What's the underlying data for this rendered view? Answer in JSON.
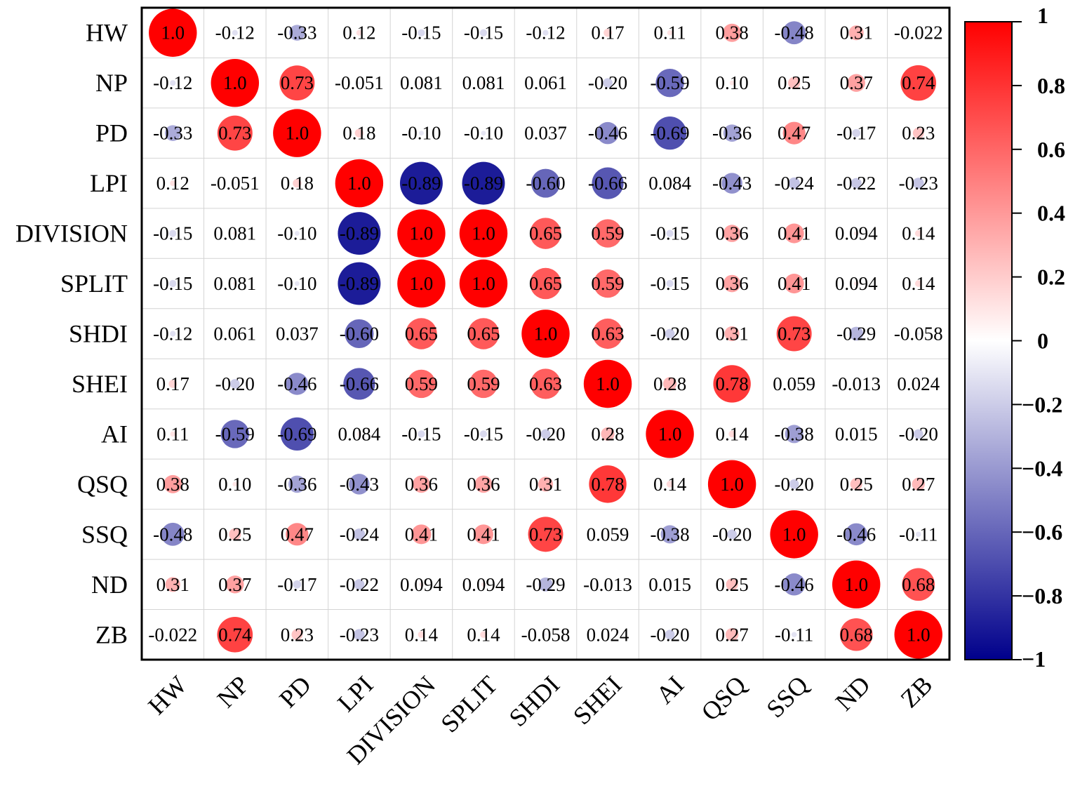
{
  "chart_data": {
    "type": "heatmap",
    "title": "",
    "xlabel": "",
    "ylabel": "",
    "variables": [
      "HW",
      "NP",
      "PD",
      "LPI",
      "DIVISION",
      "SPLIT",
      "SHDI",
      "SHEI",
      "AI",
      "QSQ",
      "SSQ",
      "ND",
      "ZB"
    ],
    "labels": [
      [
        "1.0",
        "-0.12",
        "-0.33",
        "0.12",
        "-0.15",
        "-0.15",
        "-0.12",
        "0.17",
        "0.11",
        "0.38",
        "-0.48",
        "0.31",
        "-0.022"
      ],
      [
        "-0.12",
        "1.0",
        "0.73",
        "-0.051",
        "0.081",
        "0.081",
        "0.061",
        "-0.20",
        "-0.59",
        "0.10",
        "0.25",
        "0.37",
        "0.74"
      ],
      [
        "-0.33",
        "0.73",
        "1.0",
        "0.18",
        "-0.10",
        "-0.10",
        "0.037",
        "-0.46",
        "-0.69",
        "-0.36",
        "0.47",
        "-0.17",
        "0.23"
      ],
      [
        "0.12",
        "-0.051",
        "0.18",
        "1.0",
        "-0.89",
        "-0.89",
        "-0.60",
        "-0.66",
        "0.084",
        "-0.43",
        "-0.24",
        "-0.22",
        "-0.23"
      ],
      [
        "-0.15",
        "0.081",
        "-0.10",
        "-0.89",
        "1.0",
        "1.0",
        "0.65",
        "0.59",
        "-0.15",
        "0.36",
        "0.41",
        "0.094",
        "0.14"
      ],
      [
        "-0.15",
        "0.081",
        "-0.10",
        "-0.89",
        "1.0",
        "1.0",
        "0.65",
        "0.59",
        "-0.15",
        "0.36",
        "0.41",
        "0.094",
        "0.14"
      ],
      [
        "-0.12",
        "0.061",
        "0.037",
        "-0.60",
        "0.65",
        "0.65",
        "1.0",
        "0.63",
        "-0.20",
        "0.31",
        "0.73",
        "-0.29",
        "-0.058"
      ],
      [
        "0.17",
        "-0.20",
        "-0.46",
        "-0.66",
        "0.59",
        "0.59",
        "0.63",
        "1.0",
        "0.28",
        "0.78",
        "0.059",
        "-0.013",
        "0.024"
      ],
      [
        "0.11",
        "-0.59",
        "-0.69",
        "0.084",
        "-0.15",
        "-0.15",
        "-0.20",
        "0.28",
        "1.0",
        "0.14",
        "-0.38",
        "0.015",
        "-0.20"
      ],
      [
        "0.38",
        "0.10",
        "-0.36",
        "-0.43",
        "0.36",
        "0.36",
        "0.31",
        "0.78",
        "0.14",
        "1.0",
        "-0.20",
        "0.25",
        "0.27"
      ],
      [
        "-0.48",
        "0.25",
        "0.47",
        "-0.24",
        "0.41",
        "0.41",
        "0.73",
        "0.059",
        "-0.38",
        "-0.20",
        "1.0",
        "-0.46",
        "-0.11"
      ],
      [
        "0.31",
        "0.37",
        "-0.17",
        "-0.22",
        "0.094",
        "0.094",
        "-0.29",
        "-0.013",
        "0.015",
        "0.25",
        "-0.46",
        "1.0",
        "0.68"
      ],
      [
        "-0.022",
        "0.74",
        "0.23",
        "-0.23",
        "0.14",
        "0.14",
        "-0.058",
        "0.024",
        "-0.20",
        "0.27",
        "-0.11",
        "0.68",
        "1.0"
      ]
    ],
    "colorbar": {
      "min": -1,
      "max": 1,
      "ticks": [
        {
          "value": 1,
          "label": "1"
        },
        {
          "value": 0.8,
          "label": "0.8"
        },
        {
          "value": 0.6,
          "label": "0.6"
        },
        {
          "value": 0.4,
          "label": "0.4"
        },
        {
          "value": 0.2,
          "label": "0.2"
        },
        {
          "value": 0,
          "label": "0"
        },
        {
          "value": -0.2,
          "label": "−0.2"
        },
        {
          "value": -0.4,
          "label": "−0.4"
        },
        {
          "value": -0.6,
          "label": "−0.6"
        },
        {
          "value": -0.8,
          "label": "−0.8"
        },
        {
          "value": -1,
          "label": "−1"
        }
      ],
      "colors": [
        "#00008b",
        "#ffffff",
        "#ff0000"
      ]
    },
    "grid": true,
    "legend": "right"
  }
}
